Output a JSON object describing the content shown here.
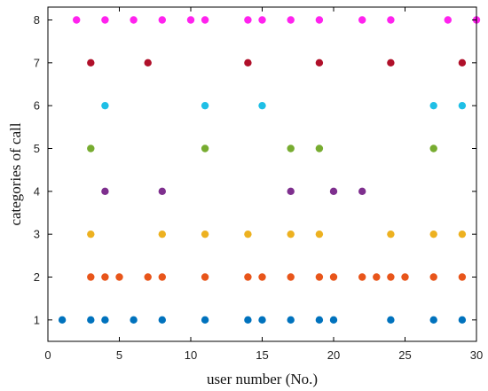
{
  "chart_data": {
    "type": "scatter",
    "xlabel": "user number (No.)",
    "ylabel": "categories of call",
    "xlim": [
      0,
      30
    ],
    "ylim": [
      0.5,
      8.3
    ],
    "xticks": [
      0,
      5,
      10,
      15,
      20,
      25,
      30
    ],
    "yticks": [
      1,
      2,
      3,
      4,
      5,
      6,
      7,
      8
    ],
    "grid": false,
    "series": [
      {
        "color": "#0072BD",
        "points": [
          [
            1,
            1
          ],
          [
            3,
            1
          ],
          [
            4,
            1
          ],
          [
            6,
            1
          ],
          [
            8,
            1
          ],
          [
            11,
            1
          ],
          [
            14,
            1
          ],
          [
            15,
            1
          ],
          [
            17,
            1
          ],
          [
            19,
            1
          ],
          [
            20,
            1
          ],
          [
            24,
            1
          ],
          [
            27,
            1
          ],
          [
            29,
            1
          ]
        ]
      },
      {
        "color": "#E8551A",
        "points": [
          [
            3,
            2
          ],
          [
            4,
            2
          ],
          [
            5,
            2
          ],
          [
            7,
            2
          ],
          [
            8,
            2
          ],
          [
            11,
            2
          ],
          [
            14,
            2
          ],
          [
            15,
            2
          ],
          [
            17,
            2
          ],
          [
            19,
            2
          ],
          [
            20,
            2
          ],
          [
            22,
            2
          ],
          [
            23,
            2
          ],
          [
            24,
            2
          ],
          [
            25,
            2
          ],
          [
            27,
            2
          ],
          [
            29,
            2
          ]
        ]
      },
      {
        "color": "#EDB120",
        "points": [
          [
            3,
            3
          ],
          [
            8,
            3
          ],
          [
            11,
            3
          ],
          [
            14,
            3
          ],
          [
            17,
            3
          ],
          [
            19,
            3
          ],
          [
            24,
            3
          ],
          [
            27,
            3
          ],
          [
            29,
            3
          ]
        ]
      },
      {
        "color": "#7E2F8E",
        "points": [
          [
            4,
            4
          ],
          [
            8,
            4
          ],
          [
            17,
            4
          ],
          [
            20,
            4
          ],
          [
            22,
            4
          ]
        ]
      },
      {
        "color": "#77AC30",
        "points": [
          [
            3,
            5
          ],
          [
            11,
            5
          ],
          [
            17,
            5
          ],
          [
            19,
            5
          ],
          [
            27,
            5
          ]
        ]
      },
      {
        "color": "#1FBFE6",
        "points": [
          [
            4,
            6
          ],
          [
            11,
            6
          ],
          [
            15,
            6
          ],
          [
            27,
            6
          ],
          [
            29,
            6
          ]
        ]
      },
      {
        "color": "#B0102A",
        "points": [
          [
            3,
            7
          ],
          [
            7,
            7
          ],
          [
            14,
            7
          ],
          [
            19,
            7
          ],
          [
            24,
            7
          ],
          [
            29,
            7
          ]
        ]
      },
      {
        "color": "#FF22EE",
        "points": [
          [
            2,
            8
          ],
          [
            4,
            8
          ],
          [
            6,
            8
          ],
          [
            8,
            8
          ],
          [
            10,
            8
          ],
          [
            11,
            8
          ],
          [
            14,
            8
          ],
          [
            15,
            8
          ],
          [
            17,
            8
          ],
          [
            19,
            8
          ],
          [
            22,
            8
          ],
          [
            24,
            8
          ],
          [
            28,
            8
          ],
          [
            30,
            8
          ]
        ]
      }
    ]
  }
}
